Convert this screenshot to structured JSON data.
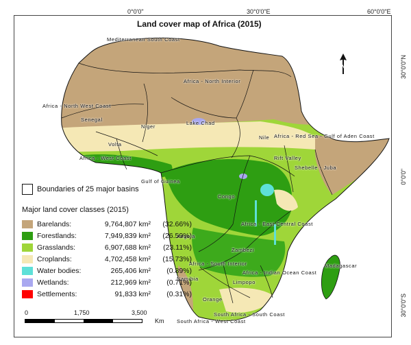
{
  "title": "Land cover map of Africa (2015)",
  "graticule": {
    "top": [
      "0°0'0\"",
      "30°0'0\"E",
      "60°0'0\"E"
    ],
    "right": [
      "30°0'0\"N",
      "0°0'0\"",
      "30°0'0\"S"
    ]
  },
  "basins": [
    "Mediterranean South Coast",
    "Africa - North Interior",
    "Africa - North West Coast",
    "Senegal",
    "Niger",
    "Lake Chad",
    "Volta",
    "Africa - West Coast",
    "Nile",
    "Africa - Red Sea - Gulf of Aden Coast",
    "Rift Valley",
    "Shebelle - Juba",
    "Gulf of Guinea",
    "Congo",
    "Africa - East Central Coast",
    "Angola",
    "Zambezi",
    "Africa - South Interior",
    "Africa - Indian Ocean Coast",
    "Namibia",
    "Limpopo",
    "Madagascar",
    "Orange",
    "South Africa - South Coast",
    "South Africa - West Coast"
  ],
  "legend": {
    "basin_boundaries": "Boundaries of 25 major basins",
    "classes_title": "Major land cover classes (2015)",
    "classes": [
      {
        "name": "Barelands:",
        "area": "9,764,807 km²",
        "pct": "(32.66%)",
        "color": "#C4A57A"
      },
      {
        "name": "Forestlands:",
        "area": "7,949,839 km²",
        "pct": "(26.59%)",
        "color": "#2E9E12"
      },
      {
        "name": "Grasslands:",
        "area": "6,907,688 km²",
        "pct": "(23.11%)",
        "color": "#9FD639"
      },
      {
        "name": "Croplands:",
        "area": "4,702,458 km²",
        "pct": "(15.73%)",
        "color": "#F5E8B5"
      },
      {
        "name": "Water bodies:",
        "area": "265,406 km²",
        "pct": "(0.89%)",
        "color": "#5EE0D8"
      },
      {
        "name": "Wetlands:",
        "area": "212,969 km²",
        "pct": "(0.71%)",
        "color": "#A9A8F0"
      },
      {
        "name": "Settlements:",
        "area": "91,833 km²",
        "pct": "(0.31%)",
        "color": "#FF0000"
      }
    ]
  },
  "scale": {
    "labels": [
      "0",
      "1,750",
      "3,500"
    ],
    "unit": "Km"
  },
  "north_icon": "north-arrow-icon"
}
